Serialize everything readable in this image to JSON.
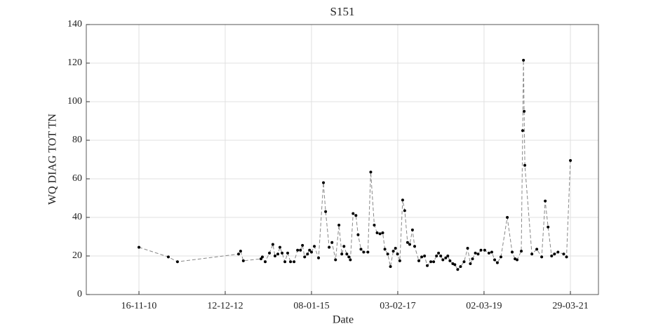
{
  "chart_data": {
    "type": "line",
    "title": "S151",
    "x_label": "Date",
    "y_label": "WQ DIAG TOT TN",
    "xlim": [
      "2009-08-11",
      "2021-11-30"
    ],
    "xticks": [
      {
        "value": "2010-11-16",
        "label": "16-11-10"
      },
      {
        "value": "2012-12-12",
        "label": "12-12-12"
      },
      {
        "value": "2015-01-08",
        "label": "08-01-15"
      },
      {
        "value": "2017-02-03",
        "label": "03-02-17"
      },
      {
        "value": "2019-03-02",
        "label": "02-03-19"
      },
      {
        "value": "2021-03-29",
        "label": "29-03-21"
      }
    ],
    "ylim": [
      0,
      140
    ],
    "yticks": [
      0,
      20,
      40,
      60,
      80,
      100,
      120,
      140
    ],
    "grid": true,
    "series": [
      {
        "color": "#000000",
        "line_color": "#888888",
        "x": [
          "2010-11-16",
          "2011-08-01",
          "2011-10-20",
          "2013-04-08",
          "2013-04-26",
          "2013-05-20",
          "2013-10-22",
          "2013-11-03",
          "2013-11-28",
          "2014-01-04",
          "2014-02-03",
          "2014-02-22",
          "2014-03-19",
          "2014-04-06",
          "2014-04-25",
          "2014-05-20",
          "2014-06-13",
          "2014-07-08",
          "2014-08-08",
          "2014-09-08",
          "2014-10-03",
          "2014-10-21",
          "2014-11-09",
          "2014-12-04",
          "2014-12-22",
          "2015-01-08",
          "2015-02-02",
          "2015-03-11",
          "2015-04-23",
          "2015-05-12",
          "2015-06-12",
          "2015-07-07",
          "2015-08-07",
          "2015-09-06",
          "2015-10-01",
          "2015-10-20",
          "2015-11-14",
          "2015-12-02",
          "2015-12-15",
          "2016-01-08",
          "2016-02-02",
          "2016-02-21",
          "2016-03-17",
          "2016-04-10",
          "2016-05-17",
          "2016-06-11",
          "2016-07-12",
          "2016-08-06",
          "2016-08-31",
          "2016-09-24",
          "2016-10-13",
          "2016-11-07",
          "2016-12-01",
          "2016-12-26",
          "2017-01-14",
          "2017-02-01",
          "2017-02-21",
          "2017-03-18",
          "2017-04-05",
          "2017-04-30",
          "2017-05-19",
          "2017-06-12",
          "2017-07-01",
          "2017-08-07",
          "2017-09-01",
          "2017-09-26",
          "2017-10-20",
          "2017-11-20",
          "2017-12-15",
          "2018-01-09",
          "2018-01-27",
          "2018-02-15",
          "2018-03-06",
          "2018-03-31",
          "2018-04-18",
          "2018-05-07",
          "2018-06-01",
          "2018-06-19",
          "2018-07-14",
          "2018-08-08",
          "2018-09-08",
          "2018-10-09",
          "2018-11-02",
          "2018-11-21",
          "2018-12-16",
          "2019-01-09",
          "2019-02-03",
          "2019-03-08",
          "2019-04-14",
          "2019-05-09",
          "2019-06-03",
          "2019-06-27",
          "2019-07-28",
          "2019-09-22",
          "2019-11-04",
          "2019-11-29",
          "2019-12-17",
          "2020-01-23",
          "2020-02-04",
          "2020-02-11",
          "2020-02-17",
          "2020-02-23",
          "2020-04-25",
          "2020-06-07",
          "2020-07-20",
          "2020-08-20",
          "2020-09-14",
          "2020-10-15",
          "2020-11-09",
          "2020-12-10",
          "2021-01-29",
          "2021-02-23",
          "2021-03-29"
        ],
        "values": [
          24.5,
          19.5,
          17,
          21,
          22.5,
          17.5,
          18.5,
          19.5,
          17,
          21.5,
          26,
          20,
          21,
          24.5,
          21.5,
          17,
          21.5,
          17,
          17,
          23,
          23,
          25.5,
          19.5,
          21,
          23,
          22,
          25,
          19,
          58,
          43,
          24.5,
          27,
          18,
          36,
          21,
          25,
          21,
          19.5,
          18,
          42,
          41,
          31,
          23.5,
          22,
          22,
          63.5,
          36,
          32,
          31.5,
          32,
          23.5,
          21,
          14.5,
          22.5,
          24,
          21,
          17.5,
          49,
          43.5,
          27,
          26,
          33.5,
          25,
          17.5,
          19.5,
          20,
          15,
          17,
          17,
          20,
          21.5,
          20,
          18,
          19,
          20,
          17.5,
          16,
          15.5,
          13,
          14.5,
          17,
          24,
          16,
          18.5,
          21.5,
          21,
          23,
          23,
          21.5,
          22,
          18,
          16.5,
          19.5,
          40,
          22,
          18.5,
          18,
          22.5,
          85,
          121.5,
          95,
          67,
          21,
          23.5,
          19.5,
          48.5,
          35,
          20,
          21,
          22,
          21,
          19.5,
          69.5
        ]
      }
    ]
  }
}
